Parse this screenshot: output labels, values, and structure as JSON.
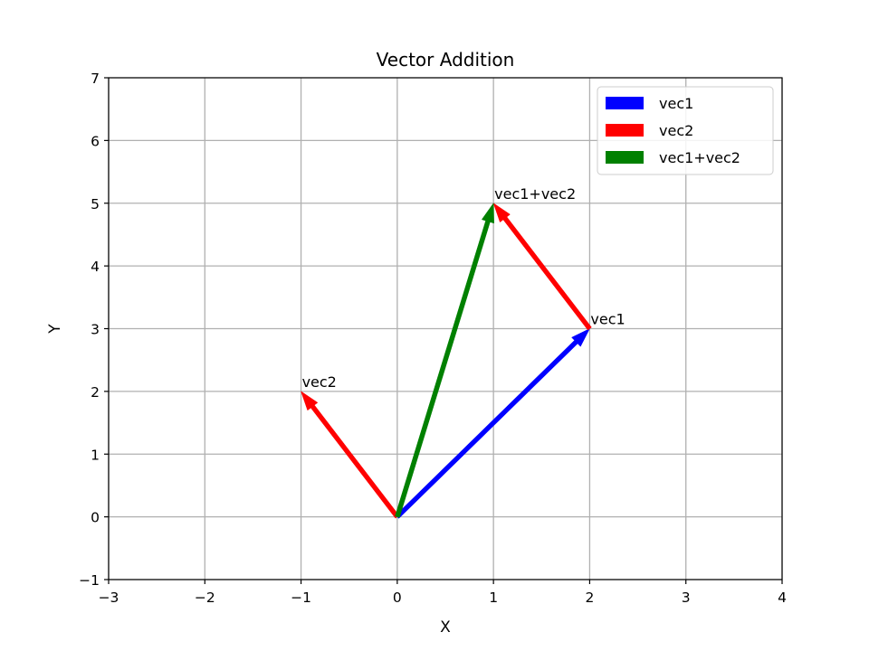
{
  "chart_data": {
    "type": "scatter",
    "title": "Vector Addition",
    "xlabel": "X",
    "ylabel": "Y",
    "xlim": [
      -3,
      4
    ],
    "ylim": [
      -1,
      7
    ],
    "xticks": [
      -3,
      -2,
      -1,
      0,
      1,
      2,
      3,
      4
    ],
    "yticks": [
      -1,
      0,
      1,
      2,
      3,
      4,
      5,
      6,
      7
    ],
    "xtick_labels": [
      "−3",
      "−2",
      "−1",
      "0",
      "1",
      "2",
      "3",
      "4"
    ],
    "ytick_labels": [
      "−1",
      "0",
      "1",
      "2",
      "3",
      "4",
      "5",
      "6",
      "7"
    ],
    "grid": true,
    "legend_position": "top-right",
    "legend": [
      "vec1",
      "vec2",
      "vec1+vec2"
    ],
    "vectors": [
      {
        "name": "vec1",
        "from": [
          0,
          0
        ],
        "to": [
          2,
          3
        ],
        "color": "#0000ff",
        "label": "vec1"
      },
      {
        "name": "vec2",
        "from": [
          0,
          0
        ],
        "to": [
          -1,
          2
        ],
        "color": "#ff0000",
        "label": "vec2"
      },
      {
        "name": "vec2",
        "from": [
          2,
          3
        ],
        "to": [
          1,
          5
        ],
        "color": "#ff0000"
      },
      {
        "name": "vec1+vec2",
        "from": [
          0,
          0
        ],
        "to": [
          1,
          5
        ],
        "color": "#008000",
        "label": "vec1+vec2"
      }
    ]
  }
}
